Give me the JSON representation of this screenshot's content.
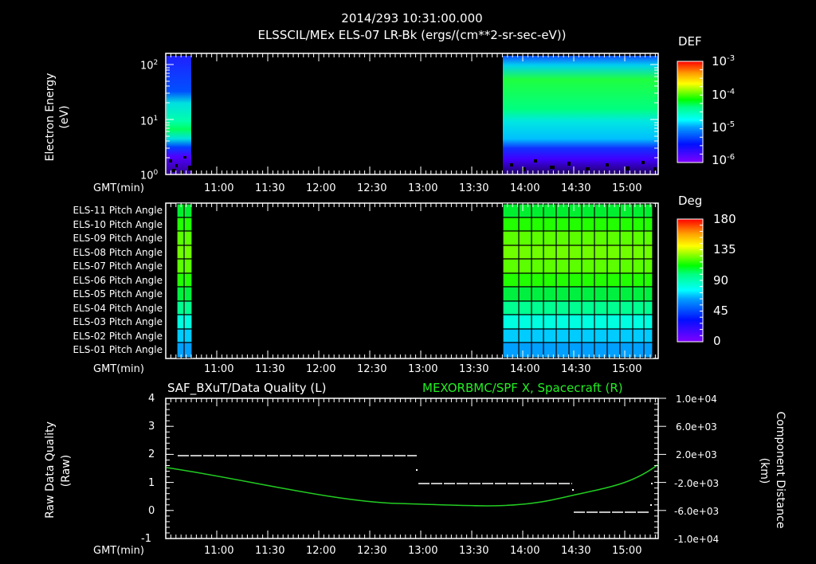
{
  "header": {
    "timestamp": "2014/293 10:31:00.000",
    "title": "ELSSCIL/MEx ELS-07 LR-Bk  (ergs/(cm**2-sr-sec-eV))"
  },
  "time_axis": {
    "label": "GMT(min)",
    "ticks": [
      "11:00",
      "11:30",
      "12:00",
      "12:30",
      "13:00",
      "13:30",
      "14:00",
      "14:30",
      "15:00"
    ]
  },
  "panel1": {
    "ylabel_line1": "Electron Energy",
    "ylabel_line2": "(eV)",
    "yticks": [
      {
        "base": "10",
        "exp": "2"
      },
      {
        "base": "10",
        "exp": "1"
      },
      {
        "base": "10",
        "exp": "0"
      }
    ],
    "colorbar": {
      "title": "DEF",
      "ticks": [
        {
          "base": "10",
          "exp": "-3"
        },
        {
          "base": "10",
          "exp": "-4"
        },
        {
          "base": "10",
          "exp": "-5"
        },
        {
          "base": "10",
          "exp": "-6"
        }
      ]
    }
  },
  "panel2": {
    "rows": [
      "ELS-11 Pitch Angle",
      "ELS-10 Pitch Angle",
      "ELS-09 Pitch Angle",
      "ELS-08 Pitch Angle",
      "ELS-07 Pitch Angle",
      "ELS-06 Pitch Angle",
      "ELS-05 Pitch Angle",
      "ELS-04 Pitch Angle",
      "ELS-03 Pitch Angle",
      "ELS-02 Pitch Angle",
      "ELS-01 Pitch Angle"
    ],
    "colorbar": {
      "title": "Deg",
      "ticks": [
        "180",
        "135",
        "90",
        "45",
        "0"
      ]
    }
  },
  "panel3": {
    "left_title": "SAF_BXuT/Data Quality (L)",
    "right_title": "MEXORBMC/SPF X, Spacecraft (R)",
    "ylabel_line1": "Raw Data Quality",
    "ylabel_line2": "(Raw)",
    "yticks_left": [
      "4",
      "3",
      "2",
      "1",
      "0",
      "-1"
    ],
    "yticks_right": [
      "1.0e+04",
      "6.0e+03",
      "2.0e+03",
      "-2.0e+03",
      "-6.0e+03",
      "-1.0e+04"
    ],
    "ylabel_right_line1": "Component Distance",
    "ylabel_right_line2": "(km)"
  },
  "colors": {
    "background": "#000000",
    "foreground": "#ffffff",
    "orbit_line": "#22cc22",
    "right_title": "#22ee22"
  },
  "chart_data": [
    {
      "type": "heatmap",
      "title": "ELSSCIL/MEx ELS-07 LR-Bk (ergs/(cm**2-sr-sec-eV))",
      "xlabel": "GMT(min)",
      "ylabel": "Electron Energy (eV)",
      "yscale": "log",
      "ylim": [
        1,
        150
      ],
      "x_tick_labels": [
        "11:00",
        "11:30",
        "12:00",
        "12:30",
        "13:00",
        "13:30",
        "14:00",
        "14:30",
        "15:00"
      ],
      "xlim": [
        "10:30",
        "15:20"
      ],
      "colorbar": {
        "label": "DEF",
        "scale": "log",
        "range": [
          1e-06,
          0.001
        ]
      },
      "data_intervals": [
        {
          "start": "10:30",
          "end": "10:45",
          "peak_energy_eV": [
            5,
            20
          ],
          "peak_level": "~1e-5"
        },
        {
          "start": "13:49",
          "end": "15:20",
          "peak_energy_eV": [
            5,
            100
          ],
          "peak_level": "~1e-4"
        }
      ],
      "gap": {
        "start": "10:45",
        "end": "13:49"
      }
    },
    {
      "type": "heatmap",
      "title": "ELS Pitch Angle",
      "xlabel": "GMT(min)",
      "categories": [
        "ELS-11",
        "ELS-10",
        "ELS-09",
        "ELS-08",
        "ELS-07",
        "ELS-06",
        "ELS-05",
        "ELS-04",
        "ELS-03",
        "ELS-02",
        "ELS-01"
      ],
      "colorbar": {
        "label": "Deg",
        "range": [
          0,
          180
        ],
        "ticks": [
          0,
          45,
          90,
          135,
          180
        ]
      },
      "values_deg": [
        100,
        110,
        118,
        122,
        118,
        108,
        95,
        80,
        65,
        55,
        45
      ],
      "data_intervals": [
        {
          "start": "10:37",
          "end": "10:46"
        },
        {
          "start": "13:49",
          "end": "15:16"
        }
      ]
    },
    {
      "type": "line",
      "title": "SAF_BXuT/Data Quality (L) ; MEXORBMC/SPF X, Spacecraft (R)",
      "xlabel": "GMT(min)",
      "ylabel": "Raw Data Quality (Raw)",
      "ylim": [
        -1,
        4
      ],
      "y2label": "Component Distance (km)",
      "y2lim": [
        -10000,
        10000
      ],
      "series": [
        {
          "name": "Data Quality",
          "axis": "left",
          "style": "dashed-white",
          "segments": [
            {
              "start": "10:37",
              "end": "12:58",
              "value": 2
            },
            {
              "start": "12:58",
              "end": "14:26",
              "value": 1
            },
            {
              "start": "14:26",
              "end": "15:15",
              "value": 0
            }
          ]
        },
        {
          "name": "MEXORBMC/SPF X, Spacecraft",
          "axis": "right",
          "style": "solid-green",
          "x": [
            "10:30",
            "11:00",
            "11:30",
            "12:00",
            "12:30",
            "13:00",
            "13:30",
            "14:00",
            "14:30",
            "15:00",
            "15:20"
          ],
          "values": [
            2300,
            800,
            -700,
            -2200,
            -3700,
            -4900,
            -5300,
            -5100,
            -3500,
            -300,
            2300
          ]
        }
      ]
    }
  ]
}
